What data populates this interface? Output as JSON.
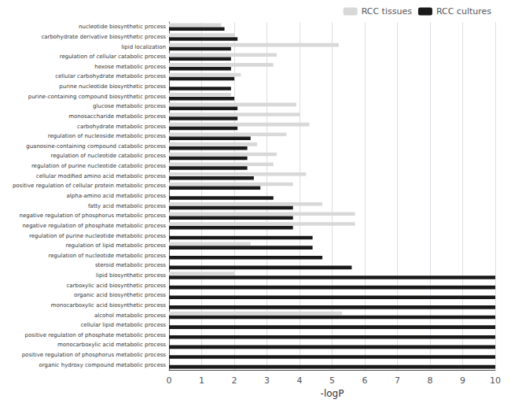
{
  "chart_data": {
    "type": "bar",
    "orientation": "horizontal",
    "categories": [
      "nucleotide biosynthetic process",
      "carbohydrate derivative biosynthetic process",
      "lipid localization",
      "regulation of cellular catabolic process",
      "hexose metabolic process",
      "cellular carbohydrate metabolic process",
      "purine nucleotide biosynthetic process",
      "purine-containing compound biosynthetic process",
      "glucose metabolic process",
      "monosaccharide metabolic process",
      "carbohydrate metabolic process",
      "regulation of nucleoside metabolic process",
      "guanosine-containing compound catabolic process",
      "regulation of nucleotide catabolic process",
      "regulation of purine nucleotide catabolic process",
      "cellular modified amino acid metabolic process",
      "positive regulation of cellular protein metabolic process",
      "alpha-amino acid metabolic process",
      "fatty acid metabolic process",
      "negative regulation of phosphorus metabolic process",
      "negative regulation of phosphate metabolic process",
      "regulation of purine nucleotide metabolic process",
      "regulation of lipid metabolic process",
      "regulation of nucleotide metabolic process",
      "steroid metabolic process",
      "lipid biosynthetic process",
      "carboxylic acid biosynthetic process",
      "organic acid biosynthetic process",
      "monocarboxylic acid biosynthetic process",
      "alcohol metabolic process",
      "cellular lipid metabolic process",
      "positive regulation of phosphate metabolic process",
      "monocarboxylic acid metabolic process",
      "positive regulation of phosphorus metabolic process",
      "organic hydroxy compound metabolic process"
    ],
    "series": [
      {
        "name": "RCC tissues",
        "color": "#d8d8d8",
        "values": [
          1.6,
          2.0,
          5.2,
          3.3,
          3.2,
          2.2,
          0.0,
          1.9,
          3.9,
          4.0,
          4.3,
          3.6,
          2.7,
          3.3,
          3.2,
          4.2,
          3.8,
          0.0,
          4.7,
          5.7,
          5.7,
          0.0,
          2.5,
          0.0,
          0.0,
          2.0,
          0.0,
          0.0,
          0.0,
          5.3,
          0.0,
          0.0,
          0.0,
          0.0,
          0.0
        ]
      },
      {
        "name": "RCC cultures",
        "color": "#1a1a1a",
        "values": [
          1.7,
          2.1,
          1.9,
          1.9,
          1.9,
          2.0,
          1.9,
          2.0,
          2.1,
          2.1,
          2.1,
          2.5,
          2.4,
          2.4,
          2.4,
          2.6,
          2.8,
          3.2,
          3.8,
          3.8,
          3.8,
          4.4,
          4.4,
          4.7,
          5.6,
          10.0,
          10.0,
          10.0,
          10.0,
          10.0,
          10.0,
          10.0,
          10.0,
          10.0,
          10.0
        ]
      }
    ],
    "xlabel": "-logP",
    "xlim": [
      0,
      10
    ],
    "xticks": [
      0,
      1,
      2,
      3,
      4,
      5,
      6,
      7,
      8,
      9,
      10
    ],
    "grid": true,
    "legend": "upper right"
  }
}
